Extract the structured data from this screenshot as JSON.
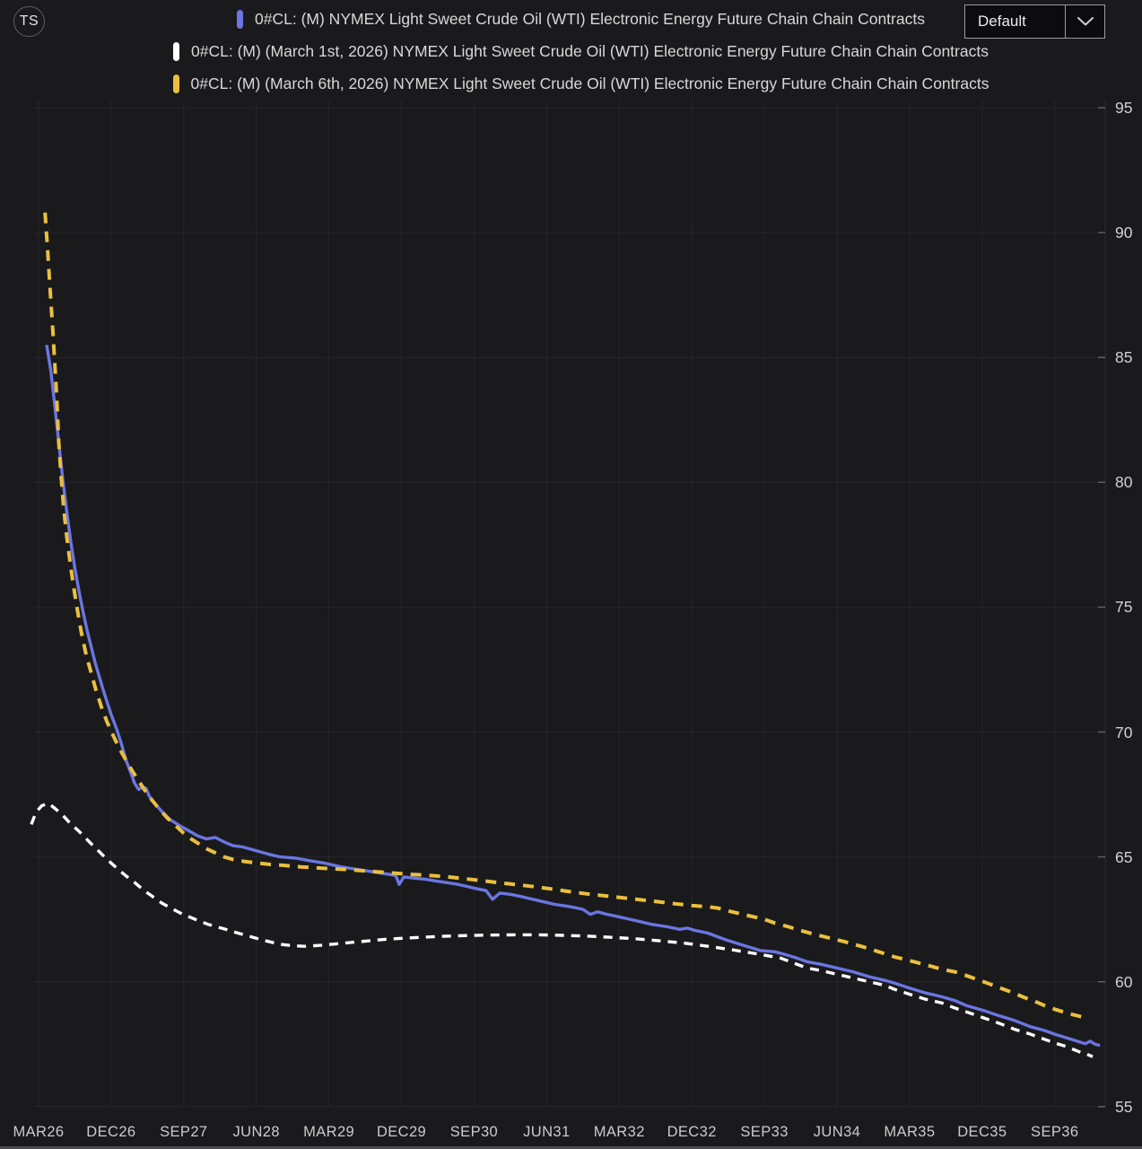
{
  "header": {
    "logo_text": "TS",
    "legend": [
      {
        "label": "0#CL: (M) NYMEX Light Sweet Crude Oil (WTI) Electronic Energy Future Chain Chain Contracts",
        "color": "#6b76e2",
        "dashed": false
      },
      {
        "label": "0#CL: (M) (March 1st, 2026) NYMEX Light Sweet Crude Oil (WTI) Electronic Energy Future Chain Chain Contracts",
        "color": "#ffffff",
        "dashed": true
      },
      {
        "label": "0#CL: (M) (March 6th, 2026) NYMEX Light Sweet Crude Oil (WTI) Electronic Energy Future Chain Chain Contracts",
        "color": "#eabf40",
        "dashed": true
      }
    ],
    "preset_dropdown": {
      "value": "Default"
    }
  },
  "chart_data": {
    "type": "line",
    "title": "",
    "xlabel": "",
    "ylabel": "",
    "x_axis": {
      "unit": "contract month (9 months per labeled tick)",
      "tick_labels": [
        "MAR26",
        "DEC26",
        "SEP27",
        "JUN28",
        "MAR29",
        "DEC29",
        "SEP30",
        "JUN31",
        "MAR32",
        "DEC32",
        "SEP33",
        "JUN34",
        "MAR35",
        "DEC35",
        "SEP36"
      ],
      "months_per_tick": 9
    },
    "y_axis": {
      "ticks": [
        95,
        90,
        85,
        80,
        75,
        70,
        65,
        60,
        55
      ],
      "range": [
        55,
        95
      ],
      "side": "right"
    },
    "grid": true,
    "legend_position": "top-center",
    "series": [
      {
        "name": "0#CL: (M) NYMEX Light Sweet Crude Oil (WTI) Electronic Energy Future Chain Chain Contracts",
        "color": "#6b76e2",
        "dashed": false,
        "width": 3.4,
        "points": [
          [
            1.0,
            85.5
          ],
          [
            1.5,
            84.5
          ],
          [
            2.0,
            83.1
          ],
          [
            2.5,
            81.6
          ],
          [
            3.0,
            80.1
          ],
          [
            3.5,
            78.8
          ],
          [
            4.0,
            77.6
          ],
          [
            4.5,
            76.55
          ],
          [
            5.0,
            75.65
          ],
          [
            5.5,
            74.85
          ],
          [
            6.0,
            74.1
          ],
          [
            6.5,
            73.45
          ],
          [
            7.0,
            72.8
          ],
          [
            7.5,
            72.25
          ],
          [
            8.0,
            71.7
          ],
          [
            8.5,
            71.2
          ],
          [
            9.0,
            70.7
          ],
          [
            9.7,
            70.1
          ],
          [
            10.3,
            69.5
          ],
          [
            10.8,
            68.9
          ],
          [
            11.4,
            68.4
          ],
          [
            11.9,
            67.95
          ],
          [
            12.4,
            67.7
          ],
          [
            12.9,
            67.8
          ],
          [
            13.3,
            67.75
          ],
          [
            13.7,
            67.45
          ],
          [
            14.1,
            67.25
          ],
          [
            15.2,
            66.85
          ],
          [
            16.3,
            66.5
          ],
          [
            17.5,
            66.25
          ],
          [
            18.6,
            66.05
          ],
          [
            19.7,
            65.85
          ],
          [
            20.8,
            65.72
          ],
          [
            21.9,
            65.78
          ],
          [
            23.0,
            65.6
          ],
          [
            24.1,
            65.45
          ],
          [
            25.3,
            65.4
          ],
          [
            26.4,
            65.3
          ],
          [
            27.5,
            65.2
          ],
          [
            28.6,
            65.1
          ],
          [
            30.0,
            65.0
          ],
          [
            31.9,
            64.95
          ],
          [
            33.6,
            64.85
          ],
          [
            35.5,
            64.75
          ],
          [
            37.5,
            64.6
          ],
          [
            39.5,
            64.5
          ],
          [
            41.5,
            64.4
          ],
          [
            43.5,
            64.3
          ],
          [
            44.3,
            64.25
          ],
          [
            44.7,
            63.9
          ],
          [
            45.3,
            64.2
          ],
          [
            46.5,
            64.15
          ],
          [
            48.0,
            64.1
          ],
          [
            50.0,
            64.0
          ],
          [
            52.0,
            63.9
          ],
          [
            54.0,
            63.75
          ],
          [
            55.5,
            63.65
          ],
          [
            56.3,
            63.3
          ],
          [
            57.2,
            63.55
          ],
          [
            58.5,
            63.5
          ],
          [
            60.0,
            63.4
          ],
          [
            62.0,
            63.25
          ],
          [
            64.0,
            63.1
          ],
          [
            66.0,
            63.0
          ],
          [
            67.5,
            62.9
          ],
          [
            68.4,
            62.7
          ],
          [
            69.3,
            62.8
          ],
          [
            70.5,
            62.7
          ],
          [
            72.0,
            62.6
          ],
          [
            74.0,
            62.45
          ],
          [
            76.0,
            62.3
          ],
          [
            78.0,
            62.2
          ],
          [
            79.5,
            62.1
          ],
          [
            80.4,
            62.15
          ],
          [
            81.5,
            62.05
          ],
          [
            83.0,
            61.95
          ],
          [
            84.2,
            61.8
          ],
          [
            85.5,
            61.65
          ],
          [
            87.0,
            61.5
          ],
          [
            88.5,
            61.35
          ],
          [
            89.5,
            61.25
          ],
          [
            91.3,
            61.2
          ],
          [
            92.5,
            61.1
          ],
          [
            94.0,
            60.95
          ],
          [
            95.3,
            60.8
          ],
          [
            97.0,
            60.7
          ],
          [
            99.0,
            60.55
          ],
          [
            101.0,
            60.4
          ],
          [
            103.0,
            60.2
          ],
          [
            105.0,
            60.05
          ],
          [
            106.1,
            59.95
          ],
          [
            108.0,
            59.75
          ],
          [
            110.0,
            59.55
          ],
          [
            112.0,
            59.4
          ],
          [
            113.6,
            59.25
          ],
          [
            115.0,
            59.05
          ],
          [
            117.2,
            58.85
          ],
          [
            119.0,
            58.65
          ],
          [
            121.0,
            58.45
          ],
          [
            123.0,
            58.2
          ],
          [
            124.7,
            58.05
          ],
          [
            126.0,
            57.9
          ],
          [
            127.5,
            57.75
          ],
          [
            129.0,
            57.6
          ],
          [
            129.8,
            57.52
          ],
          [
            130.4,
            57.62
          ],
          [
            131.0,
            57.5
          ],
          [
            131.6,
            57.45
          ]
        ]
      },
      {
        "name": "0#CL: (M) (March 1st, 2026) NYMEX Light Sweet Crude Oil (WTI) Electronic Energy Future Chain Chain Contracts",
        "color": "#ffffff",
        "dashed": true,
        "width": 3.4,
        "points": [
          [
            -0.9,
            66.3
          ],
          [
            -0.3,
            66.8
          ],
          [
            0.4,
            67.05
          ],
          [
            1.2,
            67.15
          ],
          [
            2.0,
            66.95
          ],
          [
            2.9,
            66.7
          ],
          [
            3.9,
            66.35
          ],
          [
            5.1,
            66.0
          ],
          [
            6.3,
            65.6
          ],
          [
            7.4,
            65.25
          ],
          [
            8.5,
            64.9
          ],
          [
            9.7,
            64.55
          ],
          [
            10.8,
            64.25
          ],
          [
            12.0,
            63.95
          ],
          [
            13.1,
            63.65
          ],
          [
            14.2,
            63.4
          ],
          [
            15.3,
            63.15
          ],
          [
            16.4,
            62.95
          ],
          [
            17.6,
            62.75
          ],
          [
            18.7,
            62.6
          ],
          [
            19.8,
            62.45
          ],
          [
            21.0,
            62.3
          ],
          [
            22.1,
            62.2
          ],
          [
            23.2,
            62.1
          ],
          [
            24.4,
            61.98
          ],
          [
            25.5,
            61.88
          ],
          [
            26.6,
            61.78
          ],
          [
            27.7,
            61.68
          ],
          [
            28.9,
            61.58
          ],
          [
            30.0,
            61.5
          ],
          [
            31.5,
            61.44
          ],
          [
            33.0,
            61.42
          ],
          [
            35.0,
            61.46
          ],
          [
            37.0,
            61.52
          ],
          [
            39.0,
            61.58
          ],
          [
            41.0,
            61.64
          ],
          [
            43.0,
            61.7
          ],
          [
            45.0,
            61.74
          ],
          [
            47.5,
            61.78
          ],
          [
            50.0,
            61.82
          ],
          [
            53.0,
            61.85
          ],
          [
            56.0,
            61.87
          ],
          [
            59.0,
            61.88
          ],
          [
            62.0,
            61.88
          ],
          [
            65.0,
            61.86
          ],
          [
            68.0,
            61.83
          ],
          [
            71.0,
            61.78
          ],
          [
            74.0,
            61.72
          ],
          [
            77.0,
            61.64
          ],
          [
            80.0,
            61.55
          ],
          [
            83.0,
            61.42
          ],
          [
            86.0,
            61.28
          ],
          [
            89.0,
            61.12
          ],
          [
            92.0,
            60.95
          ],
          [
            95.3,
            60.55
          ],
          [
            97.0,
            60.45
          ],
          [
            99.0,
            60.3
          ],
          [
            101.0,
            60.15
          ],
          [
            103.0,
            60.0
          ],
          [
            105.0,
            59.85
          ],
          [
            106.1,
            59.7
          ],
          [
            108.0,
            59.5
          ],
          [
            110.0,
            59.3
          ],
          [
            112.0,
            59.15
          ],
          [
            113.6,
            58.95
          ],
          [
            115.0,
            58.8
          ],
          [
            117.2,
            58.55
          ],
          [
            119.0,
            58.35
          ],
          [
            121.0,
            58.1
          ],
          [
            123.0,
            57.9
          ],
          [
            124.7,
            57.7
          ],
          [
            126.0,
            57.55
          ],
          [
            127.5,
            57.4
          ],
          [
            129.0,
            57.2
          ],
          [
            130.0,
            57.1
          ],
          [
            130.7,
            57.0
          ]
        ]
      },
      {
        "name": "0#CL: (M) (March 6th, 2026) NYMEX Light Sweet Crude Oil (WTI) Electronic Energy Future Chain Chain Contracts",
        "color": "#eabf40",
        "dashed": true,
        "width": 4,
        "points": [
          [
            0.8,
            90.8
          ],
          [
            1.12,
            89.3
          ],
          [
            1.34,
            88.2
          ],
          [
            1.56,
            87.1
          ],
          [
            1.78,
            86.0
          ],
          [
            2.0,
            84.8
          ],
          [
            2.25,
            83.4
          ],
          [
            2.5,
            81.6
          ],
          [
            2.8,
            80.2
          ],
          [
            3.1,
            79.0
          ],
          [
            3.5,
            77.8
          ],
          [
            3.9,
            76.8
          ],
          [
            4.3,
            75.9
          ],
          [
            4.8,
            74.9
          ],
          [
            5.3,
            74.0
          ],
          [
            5.9,
            73.1
          ],
          [
            6.5,
            72.4
          ],
          [
            7.1,
            71.7
          ],
          [
            7.8,
            71.0
          ],
          [
            8.5,
            70.4
          ],
          [
            9.2,
            69.9
          ],
          [
            10.0,
            69.35
          ],
          [
            10.8,
            68.9
          ],
          [
            11.6,
            68.45
          ],
          [
            12.4,
            68.05
          ],
          [
            13.2,
            67.65
          ],
          [
            14.0,
            67.3
          ],
          [
            15.0,
            66.9
          ],
          [
            16.0,
            66.55
          ],
          [
            17.0,
            66.25
          ],
          [
            18.0,
            65.95
          ],
          [
            19.0,
            65.7
          ],
          [
            20.0,
            65.5
          ],
          [
            21.0,
            65.3
          ],
          [
            22.0,
            65.15
          ],
          [
            23.0,
            65.0
          ],
          [
            24.1,
            64.9
          ],
          [
            25.5,
            64.82
          ],
          [
            27.0,
            64.76
          ],
          [
            28.6,
            64.7
          ],
          [
            30.5,
            64.66
          ],
          [
            32.5,
            64.6
          ],
          [
            35.0,
            64.55
          ],
          [
            38.0,
            64.5
          ],
          [
            40.0,
            64.45
          ],
          [
            42.0,
            64.4
          ],
          [
            44.2,
            64.35
          ],
          [
            46.0,
            64.3
          ],
          [
            48.0,
            64.27
          ],
          [
            50.8,
            64.2
          ],
          [
            53.0,
            64.12
          ],
          [
            55.0,
            64.05
          ],
          [
            57.0,
            63.97
          ],
          [
            59.0,
            63.9
          ],
          [
            61.7,
            63.8
          ],
          [
            64.0,
            63.7
          ],
          [
            66.0,
            63.6
          ],
          [
            68.0,
            63.52
          ],
          [
            70.0,
            63.45
          ],
          [
            72.8,
            63.35
          ],
          [
            75.0,
            63.27
          ],
          [
            77.0,
            63.2
          ],
          [
            79.0,
            63.12
          ],
          [
            81.0,
            63.05
          ],
          [
            83.0,
            63.0
          ],
          [
            84.2,
            62.95
          ],
          [
            86.0,
            62.8
          ],
          [
            88.0,
            62.65
          ],
          [
            90.0,
            62.5
          ],
          [
            91.3,
            62.35
          ],
          [
            93.0,
            62.2
          ],
          [
            94.5,
            62.05
          ],
          [
            96.0,
            61.92
          ],
          [
            98.7,
            61.7
          ],
          [
            100.0,
            61.6
          ],
          [
            102.0,
            61.42
          ],
          [
            104.0,
            61.22
          ],
          [
            106.1,
            61.0
          ],
          [
            108.0,
            60.85
          ],
          [
            110.0,
            60.68
          ],
          [
            112.0,
            60.5
          ],
          [
            113.6,
            60.4
          ],
          [
            115.0,
            60.25
          ],
          [
            117.2,
            60.0
          ],
          [
            119.0,
            59.78
          ],
          [
            120.9,
            59.55
          ],
          [
            122.0,
            59.4
          ],
          [
            124.0,
            59.15
          ],
          [
            124.7,
            59.05
          ],
          [
            126.0,
            58.9
          ],
          [
            127.5,
            58.75
          ],
          [
            128.3,
            58.68
          ],
          [
            129.3,
            58.6
          ],
          [
            130.1,
            58.56
          ]
        ]
      }
    ]
  }
}
